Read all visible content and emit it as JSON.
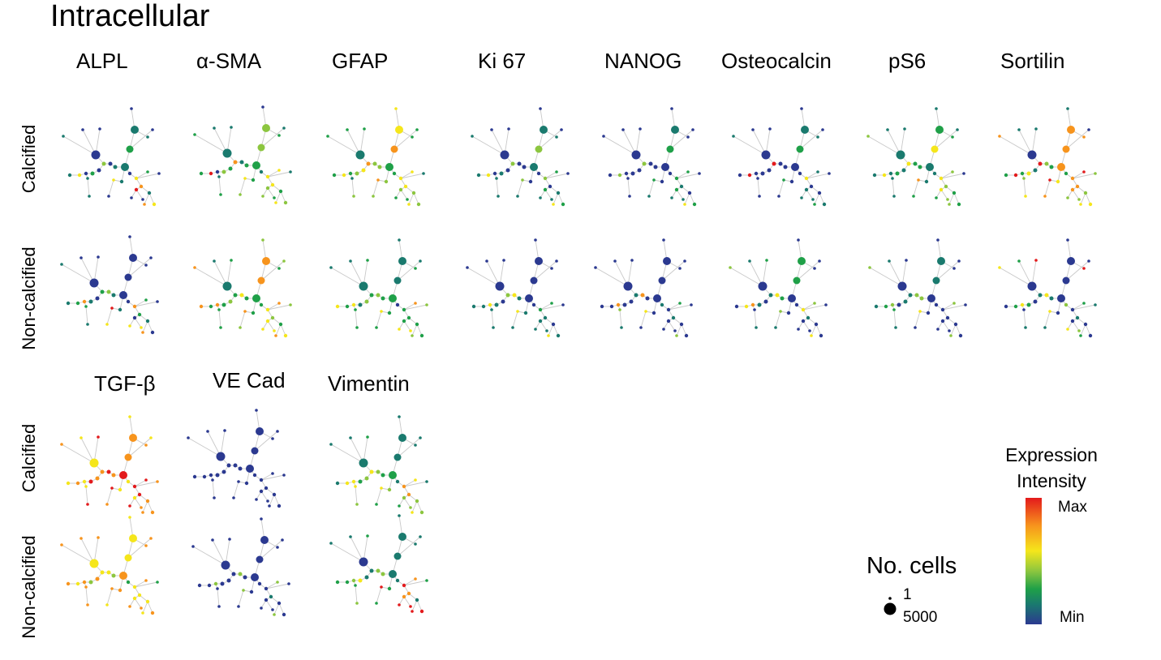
{
  "figure": {
    "title": "Intracellular",
    "markers_row1": [
      "ALPL",
      "α-SMA",
      "GFAP",
      "Ki 67",
      "NANOG",
      "Osteocalcin",
      "pS6",
      "Sortilin"
    ],
    "markers_row2": [
      "TGF-β",
      "VE Cad",
      "Vimentin"
    ],
    "conditions": [
      "Calcified",
      "Non-calcified"
    ]
  },
  "legend": {
    "size_title": "No. cells",
    "size_min": "1",
    "size_max": "5000",
    "color_title_line1": "Expression",
    "color_title_line2": "Intensity",
    "color_max": "Max",
    "color_min": "Min",
    "gradient": [
      "#e31a1c",
      "#f7941d",
      "#f5e61b",
      "#8cc63f",
      "#1fa048",
      "#1a7a6e",
      "#2b3990"
    ]
  },
  "palette": [
    "#2b3990",
    "#1a7a6e",
    "#1fa048",
    "#8cc63f",
    "#f5e61b",
    "#f7941d",
    "#e31a1c"
  ],
  "panels": [
    {
      "marker": "ALPL",
      "condition": "Calcified",
      "colors": "0001210101301020411114004205154600"
    },
    {
      "marker": "α-SMA",
      "condition": "Calcified",
      "colors": "1112330212512230621224314414243323"
    },
    {
      "marker": "GFAP",
      "condition": "Calcified",
      "colors": "1222544222533432421335324414343322"
    },
    {
      "marker": "Ki 67",
      "condition": "Calcified",
      "colors": "0001310101300010411103103200142211"
    },
    {
      "marker": "NANOG",
      "condition": "Calcified",
      "colors": "0000210000300000300002102201042211"
    },
    {
      "marker": "Osteocalcin",
      "condition": "Calcified",
      "colors": "0001210100600000600002004100021111"
    },
    {
      "marker": "pS6",
      "condition": "Calcified",
      "colors": "1113421211422121411115214303232432"
    },
    {
      "marker": "Sortilin",
      "condition": "Calcified",
      "colors": "0115551505632142623446525635344533"
    },
    {
      "marker": "ALPL",
      "condition": "Non-calcified",
      "colors": "0001000000231015212116405202150044"
    },
    {
      "marker": "α-SMA",
      "condition": "Non-calcified",
      "colors": "1125553232242325252225324533254444"
    },
    {
      "marker": "GFAP",
      "condition": "Non-calcified",
      "colors": "1121111212232314242224202532232244"
    },
    {
      "marker": "Ki 67",
      "condition": "Non-calcified",
      "colors": "0000000000341014111114102201041111"
    },
    {
      "marker": "NANOG",
      "condition": "Non-calcified",
      "colors": "0000000000150005003104010201030000"
    },
    {
      "marker": "Osteocalcin",
      "condition": "Non-calcified",
      "colors": "0123220000142015400103104301040000"
    },
    {
      "marker": "pS6",
      "condition": "Non-calcified",
      "colors": "0103110000133103212104000300030000"
    },
    {
      "marker": "Sortilin",
      "condition": "Non-calcified",
      "colors": "0264000600141024200104130211020034"
    },
    {
      "marker": "TGF-β",
      "condition": "Calcified",
      "colors": "4465554546565564544646546656555456"
    },
    {
      "marker": "VE Cad",
      "condition": "Calcified",
      "colors": "0000000000000000000000000000000000"
    },
    {
      "marker": "Vimentin",
      "condition": "Calcified",
      "colors": "1121111112432324414334215415343332"
    },
    {
      "marker": "TGF-β",
      "condition": "Non-calcified",
      "colors": "4555444555443535455555424524445455"
    },
    {
      "marker": "VE Cad",
      "condition": "Non-calcified",
      "colors": "0000000000030003000003000301030000"
    },
    {
      "marker": "Vimentin",
      "condition": "Non-calcified",
      "colors": "0121111111133143222326216525166566"
    }
  ]
}
